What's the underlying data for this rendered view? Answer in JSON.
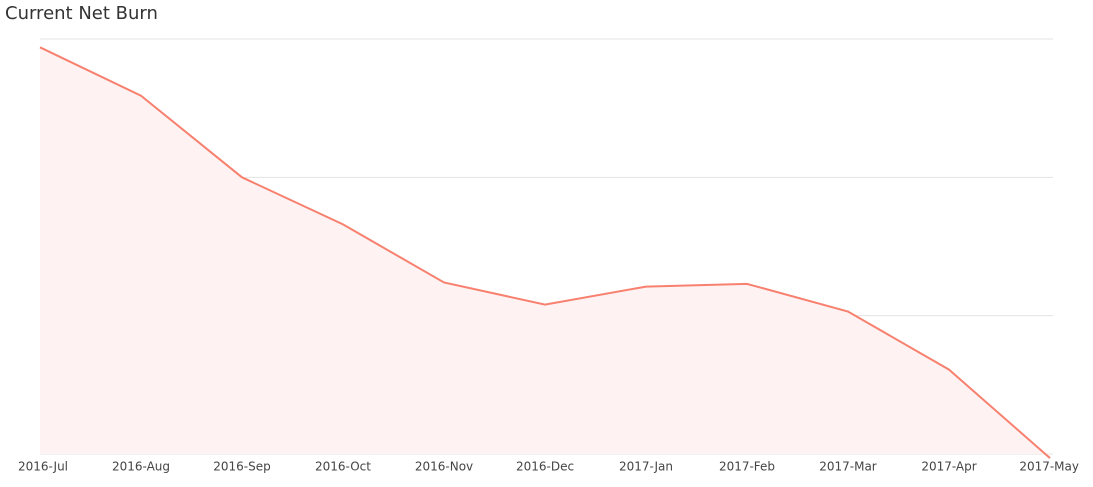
{
  "chart_data": {
    "type": "area",
    "title": "Current Net Burn",
    "categories": [
      "2016-Jul",
      "2016-Aug",
      "2016-Sep",
      "2016-Oct",
      "2016-Nov",
      "2016-Dec",
      "2017-Jan",
      "2017-Feb",
      "2017-Mar",
      "2017-Apr",
      "2017-May"
    ],
    "values": [
      2.94,
      2.59,
      2.0,
      1.66,
      1.24,
      1.08,
      1.21,
      1.23,
      1.03,
      0.61,
      -0.03
    ],
    "color": "#f7806f",
    "fill": "#fef3f2",
    "ylim": [
      0,
      3
    ],
    "yticks": [
      0,
      1,
      2,
      3
    ],
    "grid": true
  }
}
